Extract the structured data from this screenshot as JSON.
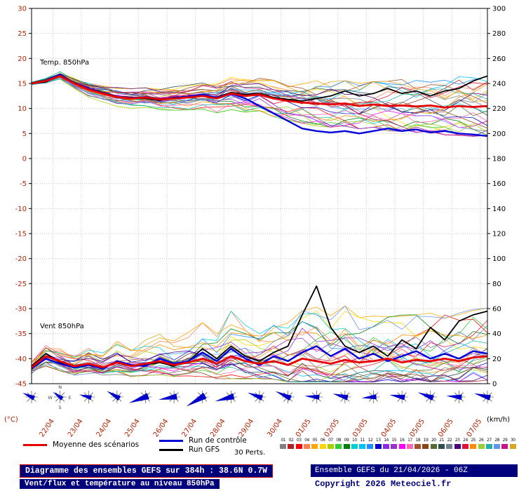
{
  "legend": {
    "mean_label": "Moyenne des scénarios",
    "control_label": "Run de contrôle",
    "gfs_label": "Run GFS",
    "perts_label": "30 Perts.",
    "mean_color": "#e60000",
    "control_color": "#0000dd",
    "gfs_color": "#000000",
    "member_numbers": [
      "01",
      "02",
      "03",
      "04",
      "05",
      "06",
      "07",
      "08",
      "09",
      "10",
      "11",
      "12",
      "13",
      "14",
      "15",
      "16",
      "17",
      "18",
      "19",
      "20",
      "21",
      "22",
      "23",
      "24",
      "25",
      "26",
      "27",
      "28",
      "29",
      "30"
    ],
    "member_colors": [
      "#808080",
      "#b22222",
      "#ff0000",
      "#ff7f50",
      "#ffa500",
      "#ffd700",
      "#adcf00",
      "#32cd32",
      "#008000",
      "#00ced1",
      "#00bfff",
      "#1e90ff",
      "#0000cd",
      "#8a2be2",
      "#9932cc",
      "#ff00ff",
      "#ff69b4",
      "#a0522d",
      "#8b4513",
      "#556b2f",
      "#2f4f4f",
      "#708090",
      "#4b0082",
      "#dc143c",
      "#ff8c00",
      "#9acd32",
      "#20b2aa",
      "#6495ed",
      "#c71585",
      "#daa520"
    ]
  },
  "footer": {
    "title": "Diagramme des ensembles GEFS sur 384h : 38.6N 0.7W",
    "subtitle": "Vent/flux et température au niveau 850hPa",
    "run_info": "Ensemble GEFS du 21/04/2026 - 06Z",
    "copyright": "Copyright 2026 Meteociel.fr"
  },
  "chart_data": {
    "type": "line",
    "title_temp": "Temp. 850hPa",
    "title_wind": "Vent 850hPa",
    "members_count": 30,
    "sample_step_hours": 12,
    "left_axis": {
      "unit": "(°C)",
      "min": -45,
      "max": 30,
      "tick_step": 5
    },
    "right_axis": {
      "unit": "(km/h)",
      "min": 0,
      "max": 300,
      "tick_step": 20
    },
    "x_axis": {
      "total_hours": 384,
      "first_day_offset_hours": 18,
      "day_step_hours": 24,
      "labels": [
        "22/04",
        "23/04",
        "24/04",
        "25/04",
        "26/04",
        "27/04",
        "28/04",
        "29/04",
        "30/04",
        "01/05",
        "02/05",
        "03/05",
        "04/05",
        "05/05",
        "06/05",
        "07/05"
      ]
    },
    "temperature": {
      "mean": [
        15.0,
        15.5,
        16.5,
        15.0,
        13.8,
        13.0,
        12.3,
        12.0,
        12.2,
        11.8,
        12.0,
        12.2,
        12.5,
        12.0,
        13.0,
        12.5,
        12.8,
        12.0,
        11.5,
        11.2,
        11.0,
        10.8,
        11.0,
        10.5,
        10.8,
        10.5,
        10.6,
        10.4,
        10.6,
        10.2,
        10.5,
        10.3,
        10.5
      ],
      "control": [
        15.0,
        15.6,
        16.8,
        15.1,
        14.0,
        13.1,
        12.4,
        12.1,
        12.3,
        11.9,
        12.1,
        12.4,
        12.8,
        12.2,
        13.0,
        12.0,
        10.5,
        9.0,
        7.5,
        6.0,
        5.5,
        5.2,
        5.5,
        5.0,
        5.5,
        6.0,
        5.5,
        5.8,
        5.2,
        5.5,
        5.0,
        4.8,
        4.5
      ],
      "gfs": [
        15.0,
        15.3,
        16.6,
        15.2,
        14.0,
        13.2,
        12.4,
        12.2,
        12.0,
        11.6,
        12.2,
        12.4,
        12.6,
        12.3,
        13.2,
        12.8,
        13.0,
        12.2,
        11.8,
        11.5,
        12.0,
        12.5,
        13.5,
        12.5,
        13.0,
        14.0,
        13.0,
        13.5,
        12.5,
        13.5,
        14.0,
        15.5,
        16.5
      ],
      "spread": [
        0.3,
        0.5,
        0.8,
        1.0,
        1.2,
        1.3,
        1.5,
        1.5,
        1.5,
        1.6,
        1.8,
        1.9,
        2.0,
        2.2,
        2.5,
        2.5,
        2.5,
        2.8,
        3.0,
        3.2,
        3.5,
        3.5,
        3.5,
        3.5,
        3.5,
        3.8,
        4.0,
        4.0,
        4.0,
        4.2,
        4.5,
        4.5,
        4.5
      ]
    },
    "wind": {
      "mean": [
        13,
        22,
        18,
        14,
        16,
        13,
        17,
        14,
        16,
        18,
        15,
        17,
        20,
        16,
        22,
        18,
        16,
        18,
        15,
        20,
        18,
        16,
        19,
        17,
        18,
        20,
        17,
        19,
        18,
        20,
        18,
        21,
        22
      ],
      "control": [
        12,
        20,
        16,
        13,
        15,
        12,
        18,
        15,
        14,
        20,
        16,
        18,
        25,
        18,
        28,
        20,
        15,
        22,
        18,
        25,
        30,
        22,
        28,
        20,
        24,
        18,
        22,
        26,
        20,
        24,
        20,
        26,
        24
      ],
      "gfs": [
        14,
        24,
        17,
        13,
        16,
        12,
        18,
        14,
        15,
        17,
        14,
        18,
        28,
        20,
        30,
        22,
        18,
        25,
        30,
        55,
        78,
        45,
        30,
        25,
        30,
        22,
        35,
        28,
        45,
        35,
        50,
        55,
        58
      ],
      "spread": [
        5,
        8,
        8,
        6,
        7,
        6,
        8,
        7,
        8,
        9,
        8,
        10,
        12,
        10,
        15,
        12,
        10,
        12,
        14,
        16,
        18,
        16,
        18,
        15,
        15,
        14,
        16,
        15,
        16,
        15,
        16,
        16,
        16
      ]
    },
    "wind_barbs": {
      "angles_deg": [
        205,
        215,
        195,
        210,
        160,
        170,
        150,
        165,
        200,
        205,
        185,
        195,
        175,
        190,
        200,
        185,
        195
      ],
      "speeds": [
        15,
        12,
        14,
        20,
        35,
        30,
        38,
        32,
        22,
        25,
        20,
        22,
        20,
        22,
        24,
        22,
        25
      ],
      "compass": [
        "N",
        "E",
        "S",
        "W"
      ]
    },
    "colors": {
      "axis_left": "#b22200",
      "axis_right": "#000000",
      "dates": "#b22200",
      "grid": "#c9c9c9",
      "frame": "#000000",
      "barb_arrow": "#0000cc",
      "star": "#333333"
    }
  }
}
